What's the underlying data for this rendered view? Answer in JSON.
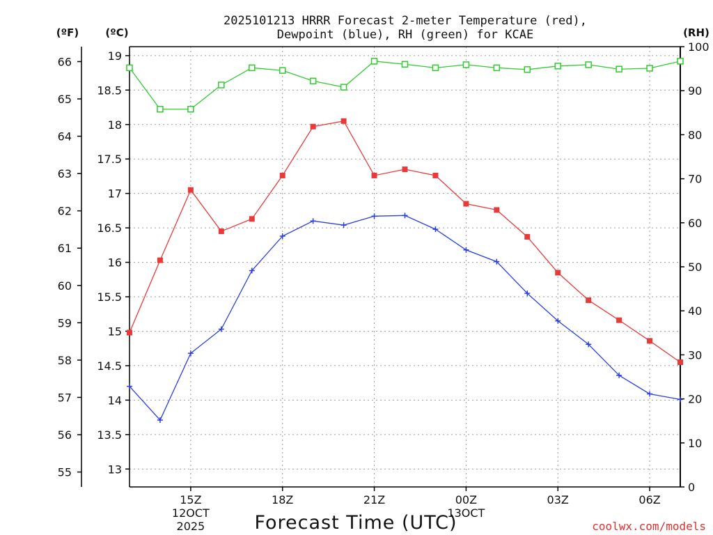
{
  "chart_data": {
    "type": "line",
    "title_line1": "2025101213 HRRR Forecast 2-meter Temperature (red),",
    "title_line2": "Dewpoint (blue), RH (green) for KCAE",
    "xlabel": "Forecast Time (UTC)",
    "watermark": "coolwx.com/models",
    "left_outer_axis": {
      "unit_label": "(ºF)",
      "range": [
        54.6,
        66.4
      ],
      "ticks": [
        55,
        56,
        57,
        58,
        59,
        60,
        61,
        62,
        63,
        64,
        65,
        66
      ]
    },
    "left_inner_axis": {
      "unit_label": "(ºC)",
      "range": [
        12.74,
        19.13
      ],
      "ticks": [
        "13",
        "13.5",
        "14",
        "14.5",
        "15",
        "15.5",
        "16",
        "16.5",
        "17",
        "17.5",
        "18",
        "18.5",
        "19"
      ]
    },
    "right_axis": {
      "unit_label": "(RH)",
      "range": [
        0,
        100
      ],
      "ticks": [
        0,
        10,
        20,
        30,
        40,
        50,
        60,
        70,
        80,
        90,
        100
      ]
    },
    "x_axis": {
      "range_hours": [
        13,
        31
      ],
      "ticks": [
        {
          "hour": 15,
          "label": "15Z",
          "sub1": "12OCT",
          "sub2": "2025"
        },
        {
          "hour": 18,
          "label": "18Z",
          "sub1": "",
          "sub2": ""
        },
        {
          "hour": 21,
          "label": "21Z",
          "sub1": "",
          "sub2": ""
        },
        {
          "hour": 24,
          "label": "00Z",
          "sub1": "13OCT",
          "sub2": ""
        },
        {
          "hour": 27,
          "label": "03Z",
          "sub1": "",
          "sub2": ""
        },
        {
          "hour": 30,
          "label": "06Z",
          "sub1": "",
          "sub2": ""
        }
      ]
    },
    "x_hours": [
      13,
      14,
      15,
      16,
      17,
      18,
      19,
      20,
      21,
      22,
      23,
      24,
      25,
      26,
      27,
      28,
      29,
      30,
      31
    ],
    "series": [
      {
        "name": "Temperature",
        "axis": "celsius",
        "color": "#e83a3a",
        "marker": "filled-square",
        "values": [
          14.98,
          16.03,
          17.05,
          16.45,
          16.63,
          17.26,
          17.97,
          18.05,
          17.26,
          17.35,
          17.26,
          16.85,
          16.76,
          16.37,
          15.85,
          15.45,
          15.16,
          14.86,
          14.55
        ]
      },
      {
        "name": "Dewpoint",
        "axis": "celsius",
        "color": "#2a3ee0",
        "marker": "plus",
        "values": [
          14.2,
          13.71,
          14.68,
          15.03,
          15.88,
          16.38,
          16.6,
          16.54,
          16.67,
          16.68,
          16.48,
          16.18,
          16.01,
          15.55,
          15.15,
          14.81,
          14.36,
          14.09,
          14.01
        ]
      },
      {
        "name": "RH",
        "axis": "rh",
        "color": "#2ecc2e",
        "marker": "open-square",
        "values": [
          95.2,
          85.8,
          85.8,
          91.3,
          95.2,
          94.6,
          92.2,
          90.8,
          96.7,
          96.0,
          95.2,
          95.9,
          95.2,
          94.8,
          95.6,
          95.9,
          94.9,
          95.1,
          96.7
        ]
      }
    ]
  }
}
